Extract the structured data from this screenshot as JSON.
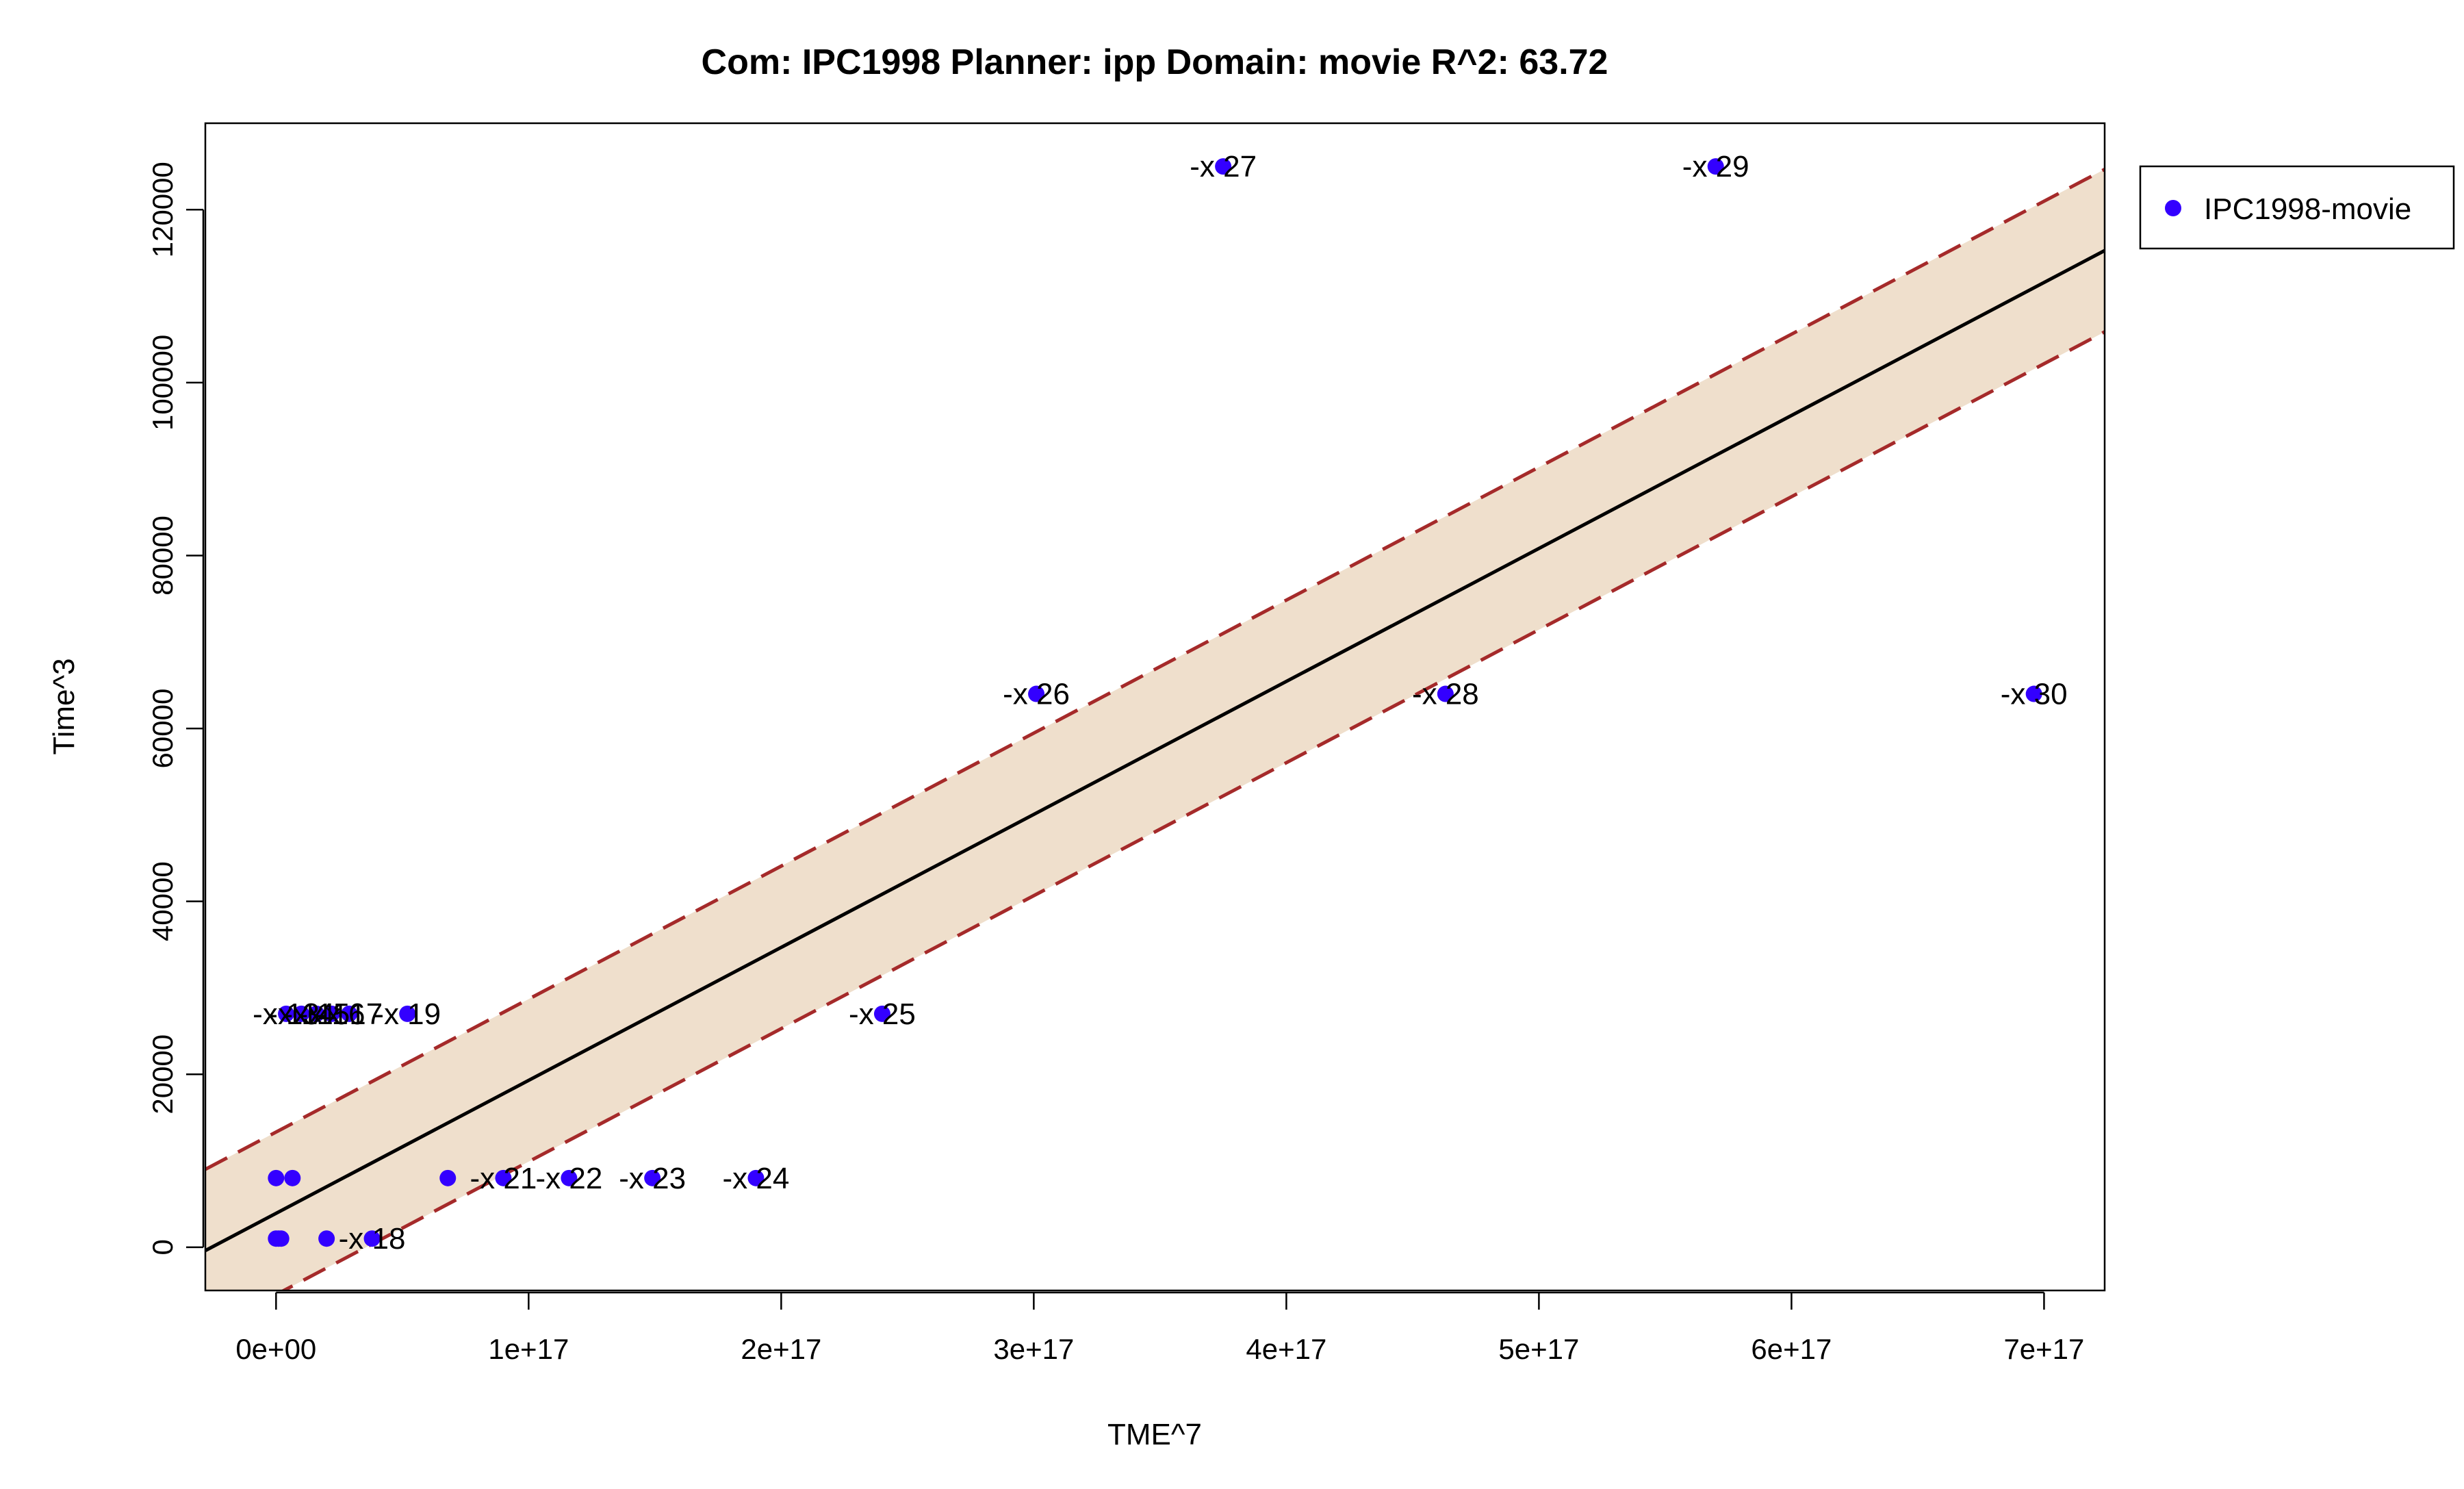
{
  "chart_data": {
    "type": "scatter",
    "title": "Com: IPC1998 Planner: ipp Domain: movie R^2: 63.72",
    "xlabel": "TME^7",
    "ylabel": "Time^3",
    "xlim": [
      -2.8e+16,
      7.24e+17
    ],
    "ylim": [
      -5000,
      130000
    ],
    "x_ticks": [
      0,
      1e+17,
      2e+17,
      3e+17,
      4e+17,
      5e+17,
      6e+17,
      7e+17
    ],
    "x_tick_labels": [
      "0e+00",
      "1e+17",
      "2e+17",
      "3e+17",
      "4e+17",
      "5e+17",
      "6e+17",
      "7e+17"
    ],
    "y_ticks": [
      0,
      20000,
      40000,
      60000,
      80000,
      100000,
      120000
    ],
    "y_tick_labels": [
      "0",
      "20000",
      "40000",
      "60000",
      "80000",
      "100000",
      "120000"
    ],
    "grid": false,
    "legend_position": "outside-top-right",
    "colors": {
      "points": "#3300ff",
      "fit_line": "#000000",
      "band_fill": "#efdfcc",
      "band_edge": "#a52a2a"
    },
    "fit": {
      "intercept": 3920,
      "slope": 1.538e-13,
      "band_halfwidth": 9400
    },
    "series": [
      {
        "name": "IPC1998-movie",
        "points": [
          {
            "x": 0,
            "y": 1000,
            "label": ""
          },
          {
            "x": 1000000000000000.0,
            "y": 1000,
            "label": ""
          },
          {
            "x": 2000000000000000.0,
            "y": 1000,
            "label": ""
          },
          {
            "x": 0,
            "y": 8000,
            "label": ""
          },
          {
            "x": 6500000000000000.0,
            "y": 8000,
            "label": ""
          },
          {
            "x": 4000000000000000.0,
            "y": 27000,
            "label": ""
          },
          {
            "x": 1e+16,
            "y": 27000,
            "label": ""
          },
          {
            "x": 1.6e+16,
            "y": 27000,
            "label": ""
          },
          {
            "x": 2.2e+16,
            "y": 27000,
            "label": ""
          },
          {
            "x": 2.9e+16,
            "y": 27000,
            "label": ""
          },
          {
            "x": 5.2e+16,
            "y": 27000,
            "label": "-x 19"
          },
          {
            "x": 2e+16,
            "y": 1000,
            "label": ""
          },
          {
            "x": 3.8e+16,
            "y": 1000,
            "label": "-x 18"
          },
          {
            "x": 6.8e+16,
            "y": 8000,
            "label": ""
          },
          {
            "x": 9e+16,
            "y": 8000,
            "label": "-x 21"
          },
          {
            "x": 1.16e+17,
            "y": 8000,
            "label": "-x 22"
          },
          {
            "x": 1.49e+17,
            "y": 8000,
            "label": "-x 23"
          },
          {
            "x": 1.9e+17,
            "y": 8000,
            "label": "-x 24"
          },
          {
            "x": 2.4e+17,
            "y": 27000,
            "label": "-x 25"
          },
          {
            "x": 3.01e+17,
            "y": 64000,
            "label": "-x 26"
          },
          {
            "x": 3.75e+17,
            "y": 125000,
            "label": "-x 27"
          },
          {
            "x": 4.63e+17,
            "y": 64000,
            "label": "-x 28"
          },
          {
            "x": 5.7e+17,
            "y": 125000,
            "label": "-x 29"
          },
          {
            "x": 6.96e+17,
            "y": 64000,
            "label": "-x 30"
          }
        ]
      }
    ],
    "overlapping_labels": [
      {
        "x": 4000000000000000.0,
        "y": 27000,
        "label": "-x 13"
      },
      {
        "x": 1e+16,
        "y": 27000,
        "label": "-x 14"
      },
      {
        "x": 1.6e+16,
        "y": 27000,
        "label": "-x 15"
      },
      {
        "x": 2.2e+16,
        "y": 27000,
        "label": "-x 16"
      },
      {
        "x": 2.9e+16,
        "y": 27000,
        "label": "-x 17"
      }
    ]
  }
}
